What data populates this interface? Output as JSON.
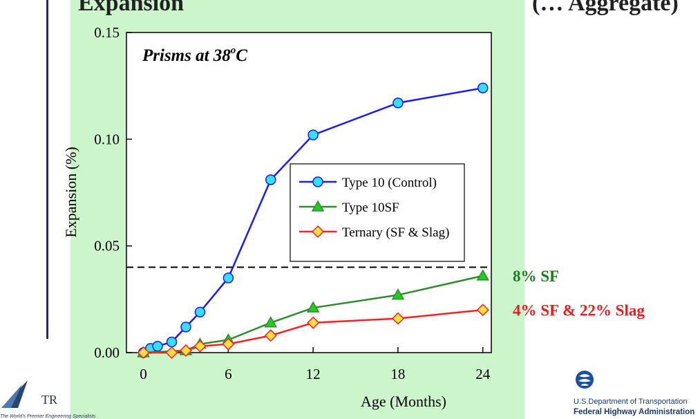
{
  "slide": {
    "title_fragment_left": "Expansion",
    "title_fragment_right": "(… Aggregate)",
    "logo_left_text": "TR",
    "logo_left_tagline": "The World's Premier Engineering Specialists",
    "agency_dept": "U.S.Department of Transportation",
    "agency_name": "Federal Highway Administration",
    "colors": {
      "panel": "#ccf5cc",
      "rule": "#22239a"
    }
  },
  "chart_data": {
    "type": "line",
    "inset_title_main": "Prisms at 38",
    "inset_title_sup": "o",
    "inset_title_end": "C",
    "xlabel": "Age (Months)",
    "ylabel": "Expansion (%)",
    "xlim": [
      -1.2,
      24.6
    ],
    "ylim": [
      0,
      0.15
    ],
    "xticks": [
      0,
      6,
      12,
      18,
      24
    ],
    "yticks": [
      0.0,
      0.05,
      0.1,
      0.15
    ],
    "ytick_labels": [
      "0.00",
      "0.05",
      "0.10",
      "0.15"
    ],
    "grid": false,
    "legend_position": "center-right",
    "reference_line": {
      "y": 0.04,
      "style": "dashed"
    },
    "series": [
      {
        "name": "Type 10 (Control)",
        "color": "#1a1aff",
        "marker": "circle",
        "marker_fill": "#33e0ff",
        "x": [
          0,
          0.5,
          1,
          2,
          3,
          4,
          6,
          9,
          12,
          18,
          24
        ],
        "y": [
          0.0,
          0.002,
          0.003,
          0.005,
          0.012,
          0.019,
          0.035,
          0.081,
          0.102,
          0.117,
          0.124
        ]
      },
      {
        "name": "Type 10SF",
        "color": "#2e8b2e",
        "marker": "triangle",
        "marker_fill": "#22cc22",
        "x": [
          0,
          3,
          4,
          6,
          9,
          12,
          18,
          24
        ],
        "y": [
          0.0,
          0.001,
          0.004,
          0.006,
          0.014,
          0.021,
          0.027,
          0.036
        ]
      },
      {
        "name": "Ternary (SF & Slag)",
        "color": "#ff2020",
        "marker": "diamond",
        "marker_fill": "#ffe040",
        "x": [
          0,
          2,
          3,
          4,
          6,
          9,
          12,
          18,
          24
        ],
        "y": [
          0.0,
          0.0,
          0.001,
          0.003,
          0.004,
          0.008,
          0.014,
          0.016,
          0.02
        ]
      }
    ],
    "annotations": [
      {
        "text": "8% SF",
        "color": "#1e7a1e",
        "series_index": 1
      },
      {
        "text": "4% SF & 22% Slag",
        "color": "#ee1c1c",
        "series_index": 2
      }
    ]
  }
}
